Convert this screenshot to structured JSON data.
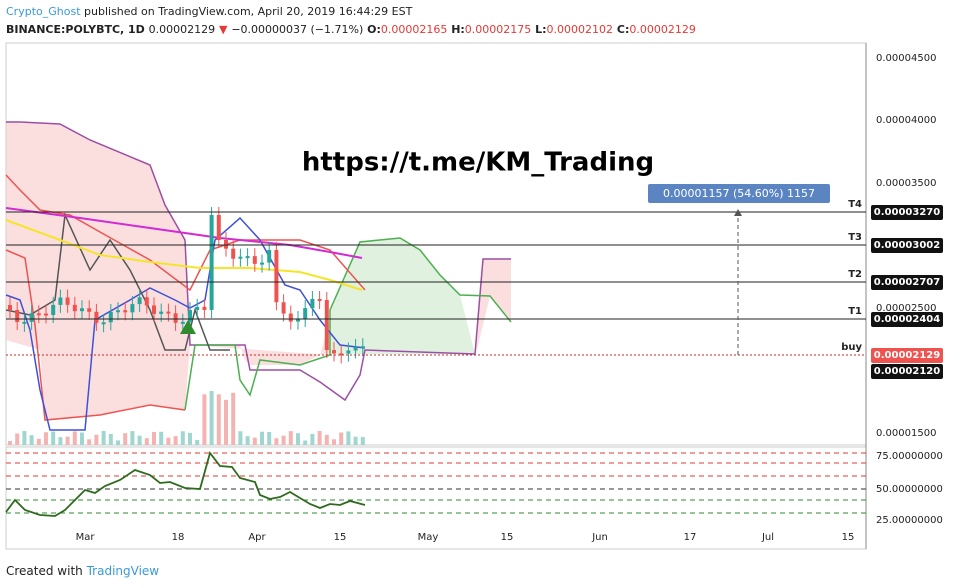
{
  "header": {
    "author": "Crypto_Ghost",
    "published": "published on TradingView.com, April 20, 2019 16:44:29 EST",
    "symbol": "BINANCE:POLYBTC, 1D",
    "last": "0.00002129",
    "change": "−0.00000037 (−1.71%)",
    "o_label": "O:",
    "o": "0.00002165",
    "h_label": "H:",
    "h": "0.00002175",
    "l_label": "L:",
    "l": "0.00002102",
    "c_label": "C:",
    "c": "0.00002129"
  },
  "watermark": "https://t.me/KM_Trading",
  "measure": "0.00001157 (54.60%) 1157",
  "targets": [
    {
      "label": "T4",
      "price": "0.00003270"
    },
    {
      "label": "T3",
      "price": "0.00003002"
    },
    {
      "label": "T2",
      "price": "0.00002707"
    },
    {
      "label": "T1",
      "price": "0.00002404"
    },
    {
      "label": "buy",
      "price": "0.00002129"
    }
  ],
  "support_price": "0.00002120",
  "price_axis": [
    "0.00004500",
    "0.00004000",
    "0.00003500",
    "0.00002500",
    "0.00001500"
  ],
  "osc_axis": [
    "75.00000000",
    "50.00000000",
    "25.00000000"
  ],
  "time_axis": [
    "Mar",
    "18",
    "Apr",
    "15",
    "May",
    "15",
    "Jun",
    "17",
    "Jul",
    "15"
  ],
  "footer": {
    "text": "Created with",
    "brand": "TradingView"
  }
}
